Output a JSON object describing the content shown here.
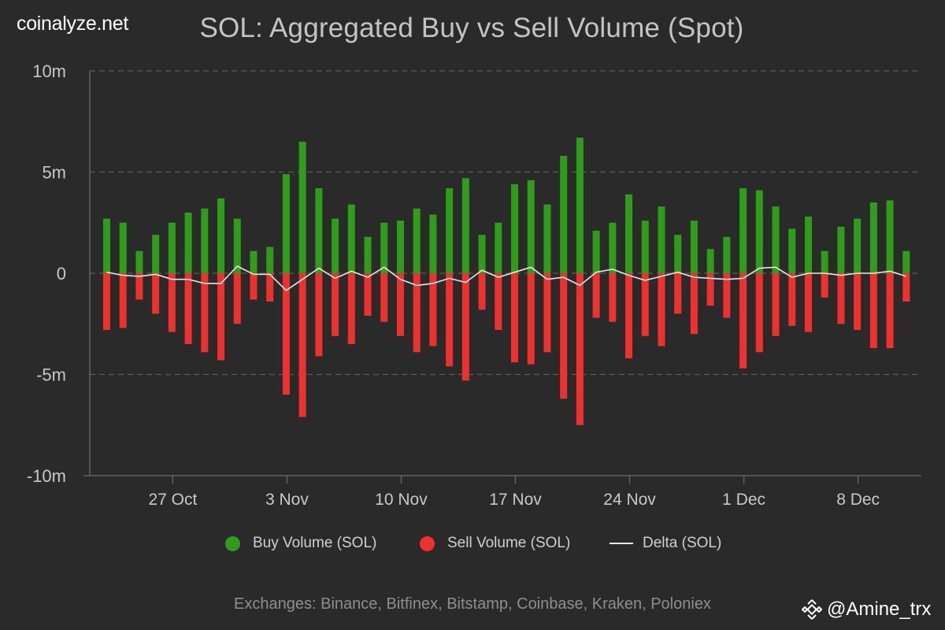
{
  "brand": "coinalyze.net",
  "colors": {
    "buy": "#2e9e1a",
    "sell": "#f0302e",
    "delta": "#e6e6e6",
    "grid": "#5a5a5a",
    "background": "#2a2a2a"
  },
  "legend": {
    "buy": "Buy Volume (SOL)",
    "sell": "Sell Volume (SOL)",
    "delta": "Delta (SOL)"
  },
  "footnote": "Exchanges: Binance, Bitfinex, Bitstamp, Coinbase, Kraken, Poloniex",
  "watermark": {
    "icon": "binance-logo-icon",
    "handle": "@Amine_trx"
  },
  "chart_data": {
    "type": "bar",
    "title": "SOL: Aggregated Buy vs Sell Volume (Spot)",
    "ylim": [
      -10,
      10
    ],
    "yunit": "m",
    "ytick_values": [
      10,
      5,
      0,
      -5,
      -10
    ],
    "ytick_labels": [
      "10m",
      "5m",
      "0",
      "-5m",
      "-10m"
    ],
    "xtick_labels": [
      "27 Oct",
      "3 Nov",
      "10 Nov",
      "17 Nov",
      "24 Nov",
      "1 Dec",
      "8 Dec"
    ],
    "xtick_index": [
      4,
      11,
      18,
      25,
      32,
      39,
      46
    ],
    "grid": "horizontal dashed",
    "legend_position": "bottom",
    "series": [
      {
        "name": "Buy Volume (SOL)",
        "values": [
          2.7,
          2.5,
          1.1,
          1.9,
          2.5,
          3.0,
          3.2,
          3.7,
          2.7,
          1.1,
          1.3,
          4.9,
          6.5,
          4.2,
          2.7,
          3.4,
          1.8,
          2.5,
          2.6,
          3.2,
          2.9,
          4.2,
          4.7,
          1.9,
          2.5,
          4.4,
          4.6,
          3.4,
          5.8,
          6.7,
          2.1,
          2.5,
          3.9,
          2.6,
          3.3,
          1.9,
          2.6,
          1.2,
          1.8,
          4.2,
          4.1,
          3.3,
          2.2,
          2.8,
          1.1,
          2.3,
          2.7,
          3.5,
          3.6,
          1.1
        ]
      },
      {
        "name": "Sell Volume (SOL)",
        "values": [
          -2.8,
          -2.7,
          -1.3,
          -2.0,
          -2.9,
          -3.5,
          -3.9,
          -4.3,
          -2.5,
          -1.3,
          -1.4,
          -6.0,
          -7.1,
          -4.1,
          -3.1,
          -3.5,
          -2.1,
          -2.4,
          -3.1,
          -3.9,
          -3.6,
          -4.6,
          -5.3,
          -1.8,
          -2.8,
          -4.4,
          -4.5,
          -3.9,
          -6.2,
          -7.5,
          -2.2,
          -2.4,
          -4.2,
          -3.1,
          -3.6,
          -2.0,
          -3.0,
          -1.6,
          -2.2,
          -4.7,
          -3.9,
          -3.1,
          -2.6,
          -2.9,
          -1.2,
          -2.5,
          -2.8,
          -3.7,
          -3.7,
          -1.4
        ]
      },
      {
        "name": "Delta (SOL)",
        "values": [
          0.05,
          -0.1,
          -0.15,
          -0.05,
          -0.3,
          -0.3,
          -0.5,
          -0.5,
          0.35,
          -0.05,
          -0.05,
          -0.85,
          -0.3,
          0.25,
          -0.25,
          0.1,
          -0.2,
          0.3,
          -0.3,
          -0.6,
          -0.5,
          -0.25,
          -0.45,
          0.15,
          -0.2,
          0.05,
          0.3,
          -0.3,
          -0.2,
          -0.6,
          0.05,
          0.2,
          -0.1,
          -0.35,
          -0.15,
          0.05,
          -0.2,
          -0.25,
          -0.3,
          -0.25,
          0.25,
          0.3,
          -0.2,
          0.0,
          0.0,
          -0.1,
          0.0,
          0.0,
          0.1,
          -0.15
        ]
      }
    ]
  }
}
